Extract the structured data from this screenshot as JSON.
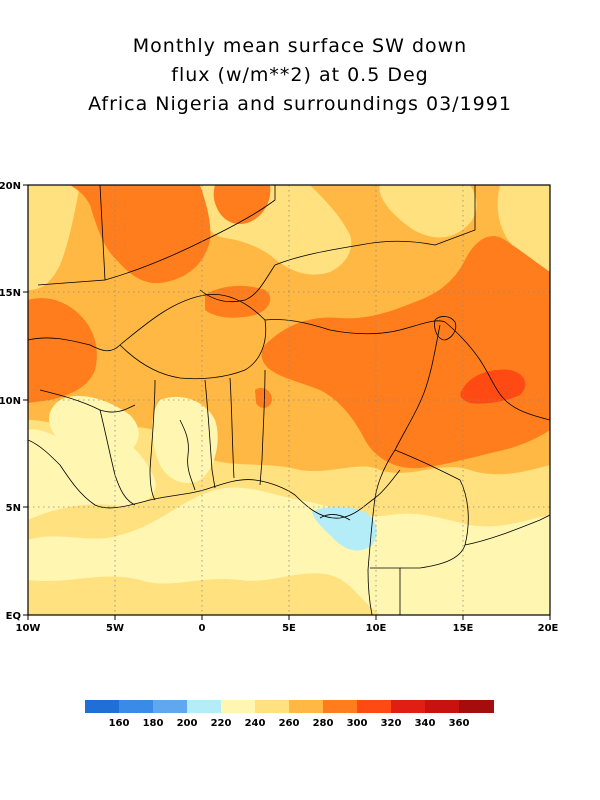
{
  "title": {
    "line1": "Monthly mean surface SW down",
    "line2": "flux (w/m**2) at 0.5 Deg",
    "line3": "Africa Nigeria and surroundings 03/1991"
  },
  "axes": {
    "x_ticks": [
      "10W",
      "5W",
      "0",
      "5E",
      "10E",
      "15E",
      "20E"
    ],
    "y_ticks": [
      "EQ",
      "5N",
      "10N",
      "15N",
      "20N"
    ],
    "lon_range": [
      -10,
      20
    ],
    "lat_range": [
      0,
      20
    ],
    "grid": "dotted"
  },
  "colorbar": {
    "labels": [
      "160",
      "180",
      "200",
      "220",
      "240",
      "260",
      "280",
      "300",
      "320",
      "340",
      "360"
    ],
    "colors": [
      "#1f6fd6",
      "#3a8ae8",
      "#5fa8f0",
      "#b4ecf7",
      "#fff6b2",
      "#ffe17f",
      "#ffb843",
      "#ff7d1c",
      "#ff4a14",
      "#e01e14",
      "#c8120f",
      "#a50d0d"
    ]
  },
  "field_colors": {
    "v240": "#fff6b2",
    "v260": "#ffe17f",
    "v280": "#ffb843",
    "v300": "#ff7d1c",
    "v220": "#b4ecf7"
  }
}
